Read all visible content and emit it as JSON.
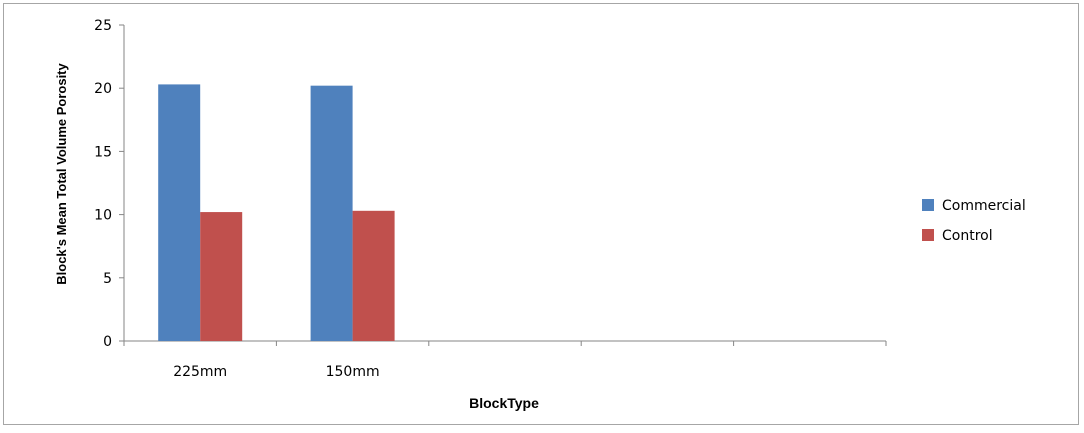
{
  "chart_data": {
    "type": "bar",
    "title": "",
    "xlabel": "BlockType",
    "ylabel": "Block's Mean Total Volume Porosity",
    "categories": [
      "225mm",
      "150mm",
      "",
      "",
      ""
    ],
    "series": [
      {
        "name": "Commercial",
        "color": "#4f81bd",
        "values": [
          20.3,
          20.2,
          null,
          null,
          null
        ]
      },
      {
        "name": "Control",
        "color": "#c0504d",
        "values": [
          10.2,
          10.3,
          null,
          null,
          null
        ]
      }
    ],
    "ylim": [
      0,
      25
    ],
    "yticks": [
      0,
      5,
      10,
      15,
      20,
      25
    ],
    "grid": false,
    "legend": "right"
  }
}
